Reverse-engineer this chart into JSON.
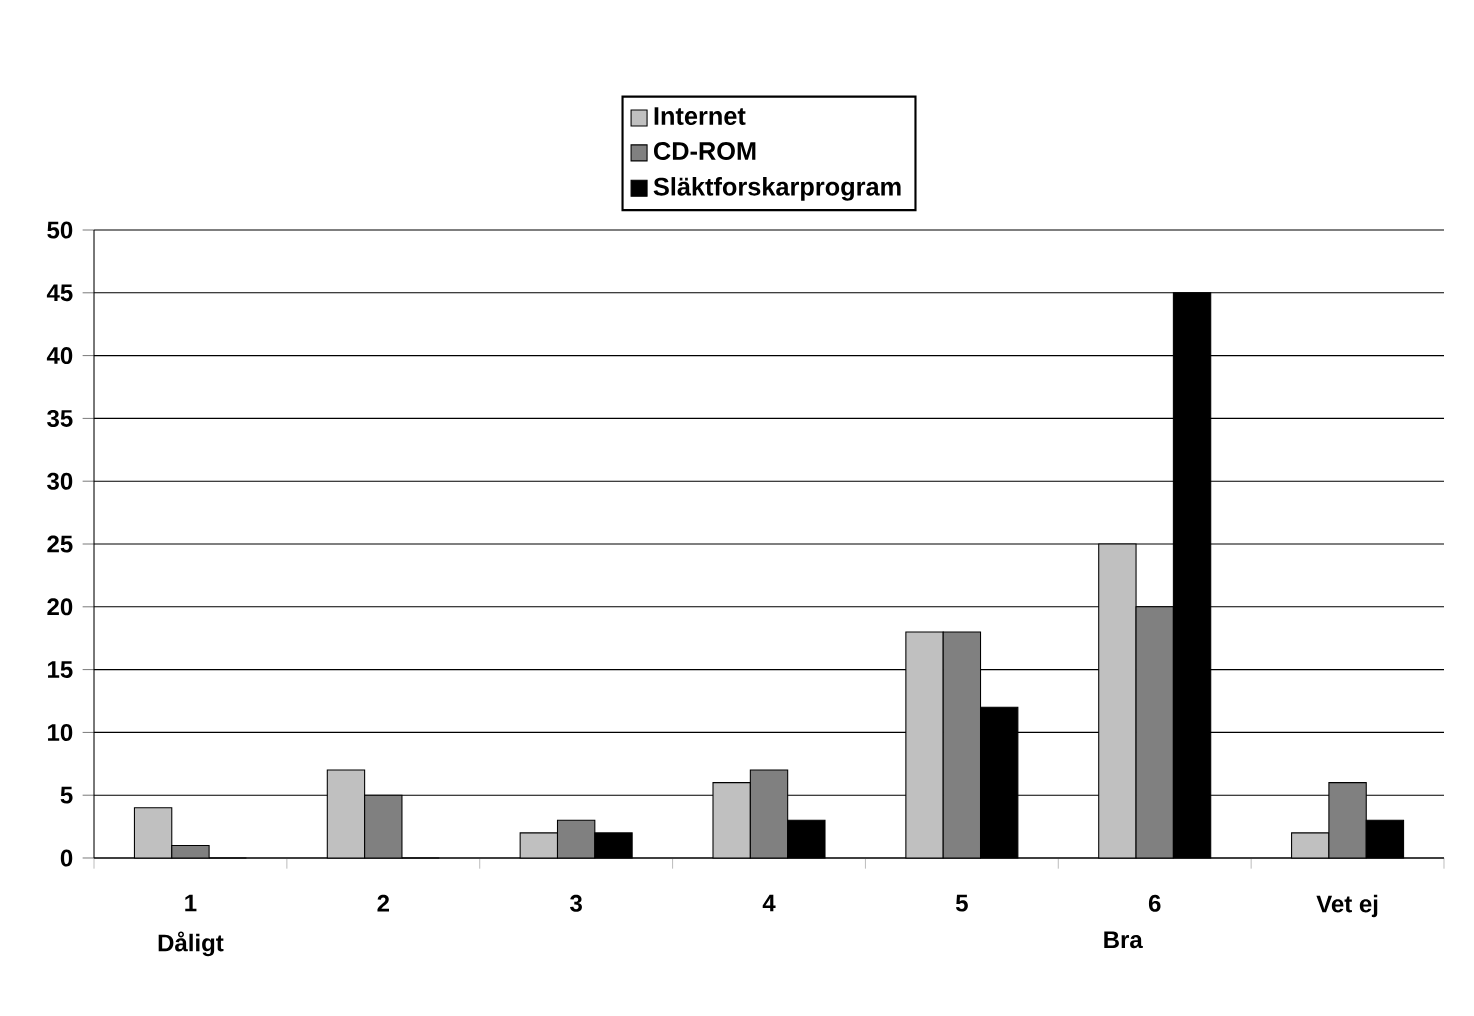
{
  "chart_data": {
    "type": "bar",
    "categories": [
      "1",
      "2",
      "3",
      "4",
      "5",
      "6",
      "Vet ej"
    ],
    "series": [
      {
        "name": "Internet",
        "color": "#c0c0c0",
        "values": [
          4,
          7,
          2,
          6,
          18,
          25,
          2
        ]
      },
      {
        "name": "CD-ROM",
        "color": "#808080",
        "values": [
          1,
          5,
          3,
          7,
          18,
          20,
          6
        ]
      },
      {
        "name": "Släktforskarprogram",
        "color": "#000000",
        "values": [
          0,
          0,
          2,
          3,
          12,
          45,
          3
        ]
      }
    ],
    "ylim": [
      0,
      50
    ],
    "yticks": [
      0,
      5,
      10,
      15,
      20,
      25,
      30,
      35,
      40,
      45,
      50
    ],
    "grid": "y",
    "legend": "top",
    "annotations": [
      "Dåligt",
      "Bra"
    ]
  }
}
